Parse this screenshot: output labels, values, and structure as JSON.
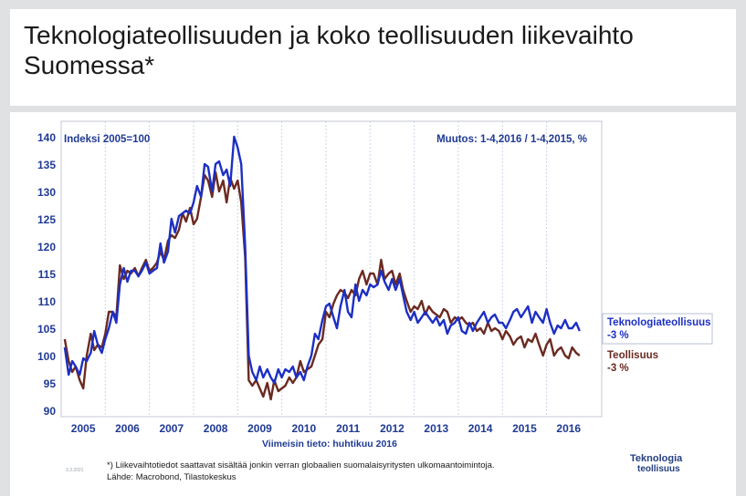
{
  "slide": {
    "title": "Teknologiateollisuuden ja koko teollisuuden liikevaihto Suomessa*",
    "footnote_line1": "*) Liikevaihtotiedot saattavat sisältää jonkin verran globaalien suomalaisyritysten ulkomaantoimintoja.",
    "footnote_line2": "Lähde: Macrobond, Tilastokeskus",
    "date_stamp": "3.3.2021",
    "logo_line1": "Teknologia",
    "logo_line2": "teollisuus"
  },
  "colors": {
    "teknologia": "#1c2fc4",
    "teollisuus": "#6b2a20",
    "axis_text": "#1f3a93",
    "grid": "#cdd3e8"
  },
  "chart_data": {
    "type": "line",
    "index_label": "Indeksi 2005=100",
    "change_label": "Muutos: 1-4,2016 / 1-4,2015, %",
    "xlabel": "Viimeisin tieto: huhtikuu 2016",
    "ylabel": "",
    "ylim": [
      90,
      140
    ],
    "yticks": [
      90,
      95,
      100,
      105,
      110,
      115,
      120,
      125,
      130,
      135,
      140
    ],
    "xlim": [
      2004.5,
      2016.75
    ],
    "xticks": [
      "2005",
      "2006",
      "2007",
      "2008",
      "2009",
      "2010",
      "2011",
      "2012",
      "2013",
      "2014",
      "2015",
      "2016"
    ],
    "grid": "dashed vertical year dividers",
    "legend_position": "right",
    "series": [
      {
        "name": "Teknologiateollisuus",
        "change": "-3 %",
        "color": "#1c2fc4",
        "points": [
          [
            2004.58,
            101.5
          ],
          [
            2004.67,
            96.5
          ],
          [
            2004.75,
            99
          ],
          [
            2004.83,
            98
          ],
          [
            2004.92,
            96.5
          ],
          [
            2005.0,
            99.5
          ],
          [
            2005.08,
            99
          ],
          [
            2005.17,
            100.5
          ],
          [
            2005.25,
            104.5
          ],
          [
            2005.33,
            102
          ],
          [
            2005.42,
            100.5
          ],
          [
            2005.5,
            103
          ],
          [
            2005.58,
            105
          ],
          [
            2005.67,
            108
          ],
          [
            2005.75,
            106
          ],
          [
            2005.83,
            113
          ],
          [
            2005.92,
            116
          ],
          [
            2006.0,
            113.5
          ],
          [
            2006.08,
            115.5
          ],
          [
            2006.17,
            115.5
          ],
          [
            2006.25,
            114.5
          ],
          [
            2006.33,
            115.5
          ],
          [
            2006.42,
            117
          ],
          [
            2006.5,
            115
          ],
          [
            2006.58,
            115.5
          ],
          [
            2006.67,
            116
          ],
          [
            2006.75,
            120.5
          ],
          [
            2006.83,
            117
          ],
          [
            2006.92,
            119
          ],
          [
            2007.0,
            125
          ],
          [
            2007.08,
            122.5
          ],
          [
            2007.17,
            125.5
          ],
          [
            2007.25,
            126
          ],
          [
            2007.33,
            126.5
          ],
          [
            2007.42,
            126
          ],
          [
            2007.5,
            128
          ],
          [
            2007.58,
            131
          ],
          [
            2007.67,
            129
          ],
          [
            2007.75,
            135
          ],
          [
            2007.83,
            134.5
          ],
          [
            2007.92,
            130
          ],
          [
            2008.0,
            135
          ],
          [
            2008.08,
            135.5
          ],
          [
            2008.17,
            133
          ],
          [
            2008.25,
            134
          ],
          [
            2008.33,
            131
          ],
          [
            2008.42,
            140
          ],
          [
            2008.5,
            138
          ],
          [
            2008.58,
            135
          ],
          [
            2008.67,
            120
          ],
          [
            2008.75,
            100
          ],
          [
            2008.83,
            97
          ],
          [
            2008.92,
            95.5
          ],
          [
            2009.0,
            98
          ],
          [
            2009.08,
            96
          ],
          [
            2009.17,
            97.5
          ],
          [
            2009.25,
            96
          ],
          [
            2009.33,
            95
          ],
          [
            2009.42,
            97.5
          ],
          [
            2009.5,
            96
          ],
          [
            2009.58,
            97.5
          ],
          [
            2009.67,
            97
          ],
          [
            2009.75,
            98
          ],
          [
            2009.83,
            96
          ],
          [
            2009.92,
            97
          ],
          [
            2010.0,
            95.5
          ],
          [
            2010.08,
            98
          ],
          [
            2010.17,
            100
          ],
          [
            2010.25,
            104
          ],
          [
            2010.33,
            103
          ],
          [
            2010.42,
            106.5
          ],
          [
            2010.5,
            109
          ],
          [
            2010.58,
            109.5
          ],
          [
            2010.67,
            107
          ],
          [
            2010.75,
            105
          ],
          [
            2010.83,
            109
          ],
          [
            2010.92,
            112
          ],
          [
            2011.0,
            108
          ],
          [
            2011.08,
            107
          ],
          [
            2011.17,
            113
          ],
          [
            2011.25,
            110
          ],
          [
            2011.33,
            112
          ],
          [
            2011.42,
            111
          ],
          [
            2011.5,
            113
          ],
          [
            2011.58,
            112.5
          ],
          [
            2011.67,
            113
          ],
          [
            2011.75,
            115.5
          ],
          [
            2011.83,
            113.5
          ],
          [
            2011.92,
            112
          ],
          [
            2012.0,
            114
          ],
          [
            2012.08,
            112
          ],
          [
            2012.17,
            114
          ],
          [
            2012.25,
            111
          ],
          [
            2012.33,
            108
          ],
          [
            2012.42,
            106.5
          ],
          [
            2012.5,
            108
          ],
          [
            2012.58,
            106
          ],
          [
            2012.67,
            107
          ],
          [
            2012.75,
            108
          ],
          [
            2012.83,
            107
          ],
          [
            2012.92,
            106
          ],
          [
            2013.0,
            107
          ],
          [
            2013.08,
            105.5
          ],
          [
            2013.17,
            106.5
          ],
          [
            2013.25,
            104
          ],
          [
            2013.33,
            105.5
          ],
          [
            2013.42,
            106
          ],
          [
            2013.5,
            107
          ],
          [
            2013.58,
            104.5
          ],
          [
            2013.67,
            104
          ],
          [
            2013.75,
            106
          ],
          [
            2013.83,
            104.5
          ],
          [
            2013.92,
            106
          ],
          [
            2014.0,
            107
          ],
          [
            2014.08,
            108
          ],
          [
            2014.17,
            106
          ],
          [
            2014.25,
            107
          ],
          [
            2014.33,
            107.5
          ],
          [
            2014.42,
            106
          ],
          [
            2014.5,
            106
          ],
          [
            2014.58,
            105
          ],
          [
            2014.67,
            106.5
          ],
          [
            2014.75,
            108
          ],
          [
            2014.83,
            108.5
          ],
          [
            2014.92,
            107
          ],
          [
            2015.0,
            108
          ],
          [
            2015.08,
            109
          ],
          [
            2015.17,
            106
          ],
          [
            2015.25,
            108
          ],
          [
            2015.33,
            107
          ],
          [
            2015.42,
            106
          ],
          [
            2015.5,
            108.5
          ],
          [
            2015.58,
            106
          ],
          [
            2015.67,
            104
          ],
          [
            2015.75,
            105.5
          ],
          [
            2015.83,
            105
          ],
          [
            2015.92,
            106.5
          ],
          [
            2016.0,
            105
          ],
          [
            2016.08,
            105
          ],
          [
            2016.17,
            106
          ],
          [
            2016.25,
            104.5
          ]
        ]
      },
      {
        "name": "Teollisuus",
        "change": "-3 %",
        "color": "#6b2a20",
        "points": [
          [
            2004.58,
            103
          ],
          [
            2004.67,
            99
          ],
          [
            2004.75,
            97
          ],
          [
            2004.83,
            98
          ],
          [
            2004.92,
            95.5
          ],
          [
            2005.0,
            94
          ],
          [
            2005.08,
            100
          ],
          [
            2005.17,
            104
          ],
          [
            2005.25,
            101
          ],
          [
            2005.33,
            102
          ],
          [
            2005.42,
            101.5
          ],
          [
            2005.5,
            104
          ],
          [
            2005.58,
            108
          ],
          [
            2005.67,
            108
          ],
          [
            2005.75,
            107
          ],
          [
            2005.83,
            116.5
          ],
          [
            2005.92,
            114
          ],
          [
            2006.0,
            115.5
          ],
          [
            2006.08,
            115
          ],
          [
            2006.17,
            116
          ],
          [
            2006.25,
            114.5
          ],
          [
            2006.33,
            116
          ],
          [
            2006.42,
            117.5
          ],
          [
            2006.5,
            115.5
          ],
          [
            2006.58,
            116
          ],
          [
            2006.67,
            117
          ],
          [
            2006.75,
            119
          ],
          [
            2006.83,
            117.5
          ],
          [
            2006.92,
            121
          ],
          [
            2007.0,
            122
          ],
          [
            2007.08,
            121.5
          ],
          [
            2007.17,
            123
          ],
          [
            2007.25,
            126
          ],
          [
            2007.33,
            124.5
          ],
          [
            2007.42,
            127
          ],
          [
            2007.5,
            124
          ],
          [
            2007.58,
            125
          ],
          [
            2007.67,
            129
          ],
          [
            2007.75,
            133
          ],
          [
            2007.83,
            132
          ],
          [
            2007.92,
            129
          ],
          [
            2008.0,
            133.5
          ],
          [
            2008.08,
            130
          ],
          [
            2008.17,
            132
          ],
          [
            2008.25,
            128
          ],
          [
            2008.33,
            132.5
          ],
          [
            2008.42,
            130.5
          ],
          [
            2008.5,
            132
          ],
          [
            2008.58,
            128
          ],
          [
            2008.67,
            118
          ],
          [
            2008.75,
            95.5
          ],
          [
            2008.83,
            94.5
          ],
          [
            2008.92,
            95.5
          ],
          [
            2009.0,
            94
          ],
          [
            2009.08,
            92.5
          ],
          [
            2009.17,
            95
          ],
          [
            2009.25,
            92
          ],
          [
            2009.33,
            95.5
          ],
          [
            2009.42,
            93.5
          ],
          [
            2009.5,
            94
          ],
          [
            2009.58,
            94.5
          ],
          [
            2009.67,
            96
          ],
          [
            2009.75,
            95
          ],
          [
            2009.83,
            96
          ],
          [
            2009.92,
            99
          ],
          [
            2010.0,
            97
          ],
          [
            2010.08,
            97.5
          ],
          [
            2010.17,
            98
          ],
          [
            2010.25,
            100
          ],
          [
            2010.33,
            102
          ],
          [
            2010.42,
            103
          ],
          [
            2010.5,
            108
          ],
          [
            2010.58,
            107
          ],
          [
            2010.67,
            109.5
          ],
          [
            2010.75,
            111
          ],
          [
            2010.83,
            112
          ],
          [
            2010.92,
            111.5
          ],
          [
            2011.0,
            110.5
          ],
          [
            2011.08,
            112
          ],
          [
            2011.17,
            111
          ],
          [
            2011.25,
            114
          ],
          [
            2011.33,
            115.5
          ],
          [
            2011.42,
            113
          ],
          [
            2011.5,
            115
          ],
          [
            2011.58,
            115
          ],
          [
            2011.67,
            113
          ],
          [
            2011.75,
            117.5
          ],
          [
            2011.83,
            114
          ],
          [
            2011.92,
            115
          ],
          [
            2012.0,
            115.5
          ],
          [
            2012.08,
            113
          ],
          [
            2012.17,
            115
          ],
          [
            2012.25,
            112
          ],
          [
            2012.33,
            110
          ],
          [
            2012.42,
            108
          ],
          [
            2012.5,
            109
          ],
          [
            2012.58,
            108.5
          ],
          [
            2012.67,
            110
          ],
          [
            2012.75,
            107.5
          ],
          [
            2012.83,
            109
          ],
          [
            2012.92,
            108
          ],
          [
            2013.0,
            107.5
          ],
          [
            2013.08,
            107
          ],
          [
            2013.17,
            108.5
          ],
          [
            2013.25,
            108
          ],
          [
            2013.33,
            106
          ],
          [
            2013.42,
            107
          ],
          [
            2013.5,
            106.5
          ],
          [
            2013.58,
            107
          ],
          [
            2013.67,
            106
          ],
          [
            2013.75,
            105.5
          ],
          [
            2013.83,
            106
          ],
          [
            2013.92,
            104.5
          ],
          [
            2014.0,
            105
          ],
          [
            2014.08,
            104
          ],
          [
            2014.17,
            106
          ],
          [
            2014.25,
            104.5
          ],
          [
            2014.33,
            105
          ],
          [
            2014.42,
            104.5
          ],
          [
            2014.5,
            103
          ],
          [
            2014.58,
            104.5
          ],
          [
            2014.67,
            103.5
          ],
          [
            2014.75,
            102
          ],
          [
            2014.83,
            103
          ],
          [
            2014.92,
            103.5
          ],
          [
            2015.0,
            101.5
          ],
          [
            2015.08,
            103
          ],
          [
            2015.17,
            102.5
          ],
          [
            2015.25,
            104
          ],
          [
            2015.33,
            102
          ],
          [
            2015.42,
            100
          ],
          [
            2015.5,
            102
          ],
          [
            2015.58,
            103
          ],
          [
            2015.67,
            100
          ],
          [
            2015.75,
            101
          ],
          [
            2015.83,
            101.5
          ],
          [
            2015.92,
            100
          ],
          [
            2016.0,
            99.5
          ],
          [
            2016.08,
            101.5
          ],
          [
            2016.17,
            100.5
          ],
          [
            2016.25,
            100
          ]
        ]
      }
    ]
  }
}
